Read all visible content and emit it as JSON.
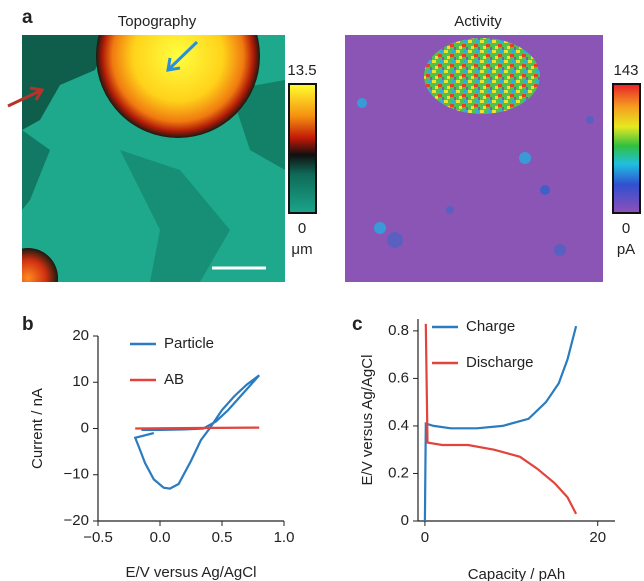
{
  "chart_data": [
    {
      "type": "image",
      "panel": "a",
      "title": "Topography",
      "colorbar_ticks": [
        0,
        13.5
      ],
      "colorbar_unit": "μm"
    },
    {
      "type": "image",
      "title": "Activity",
      "colorbar_ticks": [
        0,
        143
      ],
      "colorbar_unit": "pA"
    },
    {
      "type": "line",
      "panel": "b",
      "xlabel": "E/V versus Ag/AgCl",
      "ylabel": "Current / nA",
      "xlim": [
        -0.5,
        1.0
      ],
      "ylim": [
        -20,
        20
      ],
      "xticks": [
        {
          "value": -0.5,
          "label": "−0.5"
        },
        {
          "value": 0,
          "label": "0.0"
        },
        0.5,
        {
          "value": 1,
          "label": "1.0"
        }
      ],
      "yticks": [
        {
          "value": -20,
          "label": "−20"
        },
        {
          "value": -10,
          "label": "−10"
        },
        0,
        10,
        20
      ],
      "legend": "upper left",
      "series": [
        {
          "name": "Particle",
          "color": "#2a7bbf",
          "x": [
            -0.05,
            -0.2,
            -0.17,
            -0.12,
            -0.05,
            0.03,
            0.08,
            0.15,
            0.25,
            0.33,
            0.4,
            0.5,
            0.6,
            0.7,
            0.8,
            0.75,
            0.65,
            0.55,
            0.45,
            0.35,
            0.2,
            0.0,
            -0.15
          ],
          "values": [
            -1,
            -2,
            -4,
            -7.5,
            -11,
            -12.8,
            -13,
            -12,
            -7,
            -2.5,
            0,
            4,
            7,
            9.5,
            11.5,
            10,
            7,
            4,
            1.5,
            0,
            -0.2,
            -0.3,
            -0.3
          ]
        },
        {
          "name": "AB",
          "color": "#e2433c",
          "x": [
            -0.2,
            0.3,
            0.8
          ],
          "values": [
            0,
            0.1,
            0.2
          ]
        }
      ]
    },
    {
      "type": "line",
      "panel": "c",
      "xlabel": "Capacity / pAh",
      "ylabel": "E/V versus Ag/AgCl",
      "xlim": [
        -0.8,
        22
      ],
      "ylim": [
        0,
        0.85
      ],
      "xticks": [
        0,
        20
      ],
      "yticks": [
        0,
        0.2,
        0.4,
        0.6,
        0.8
      ],
      "legend": "upper left",
      "series": [
        {
          "name": "Charge",
          "color": "#2a7bbf",
          "x": [
            0,
            0.1,
            1,
            3,
            6,
            9,
            12,
            14,
            15.5,
            16.5,
            17.5
          ],
          "values": [
            0,
            0.41,
            0.4,
            0.39,
            0.39,
            0.4,
            0.43,
            0.5,
            0.58,
            0.68,
            0.82
          ]
        },
        {
          "name": "Discharge",
          "color": "#e2433c",
          "x": [
            0.1,
            0.3,
            2,
            5,
            8,
            11,
            13,
            15,
            16.5,
            17.5
          ],
          "values": [
            0.83,
            0.33,
            0.32,
            0.32,
            0.3,
            0.27,
            0.22,
            0.16,
            0.1,
            0.03
          ]
        }
      ]
    }
  ]
}
